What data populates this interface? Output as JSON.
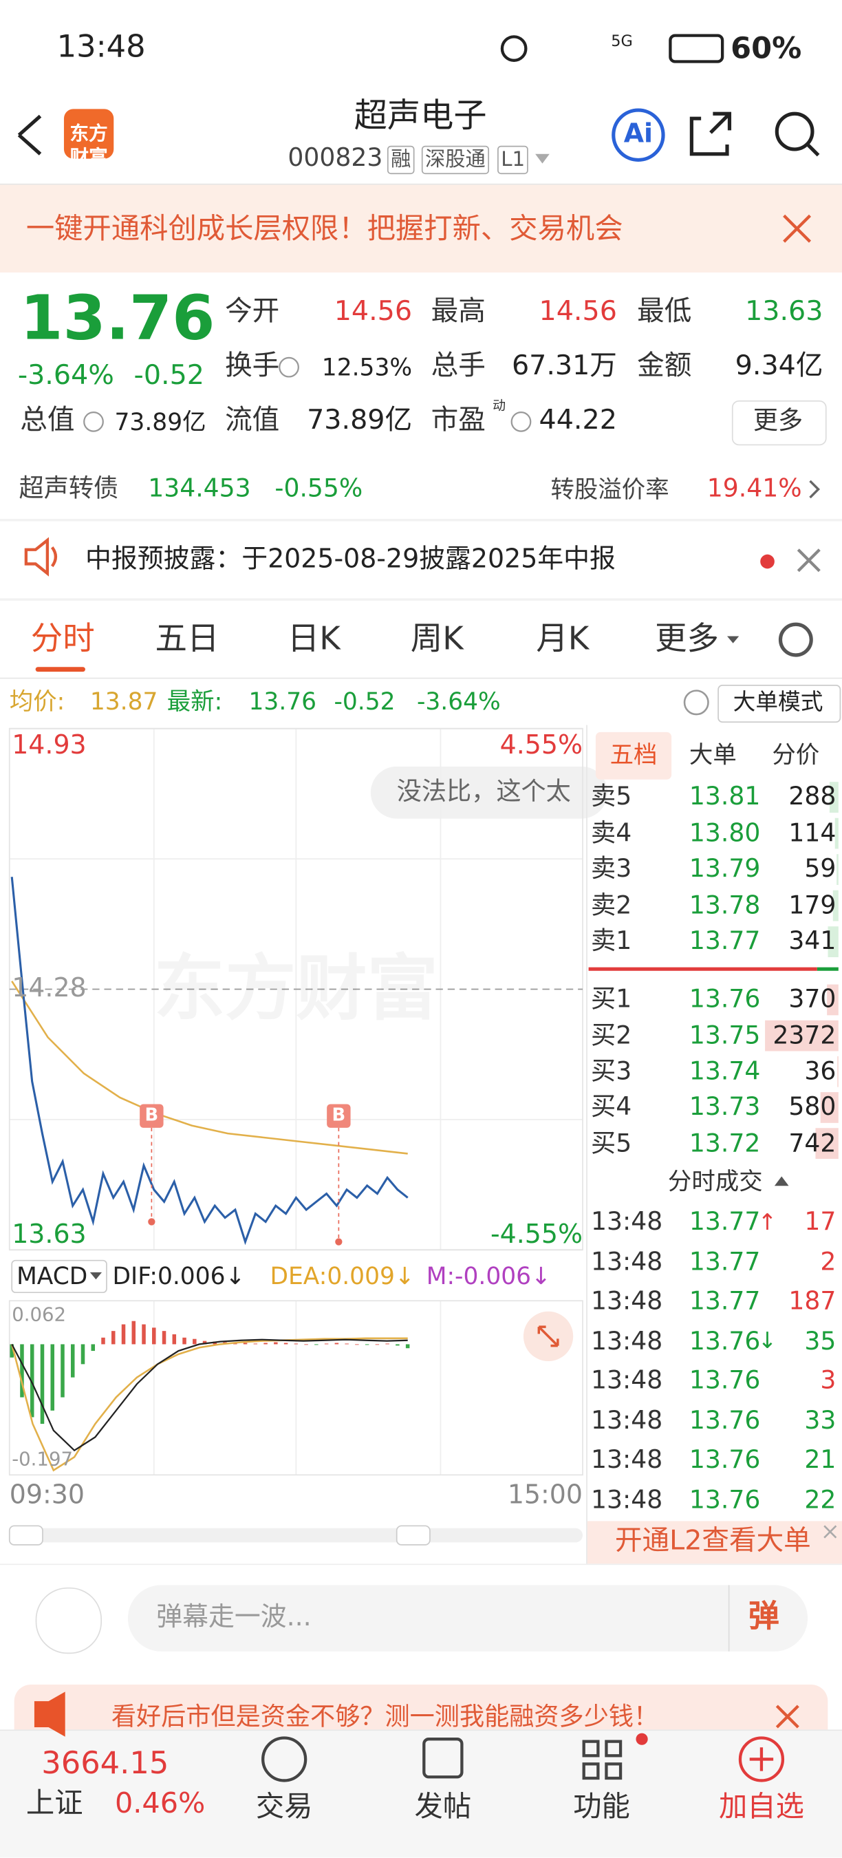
{
  "status_bar": {
    "time": "13:48",
    "network": "5G",
    "battery": "60%"
  },
  "header": {
    "logo": "东方财富",
    "title": "超声电子",
    "code": "000823",
    "tags": [
      "融",
      "深股通",
      "L1"
    ],
    "ai": "Ai"
  },
  "banner": "一键开通科创成长层权限！把握打新、交易机会",
  "quote": {
    "price": "13.76",
    "change_pct": "-3.64%",
    "change": "-0.52",
    "fields": [
      {
        "label": "今开",
        "value": "14.56",
        "color": "#e23b3b"
      },
      {
        "label": "最高",
        "value": "14.56",
        "color": "#e23b3b"
      },
      {
        "label": "最低",
        "value": "13.63",
        "color": "#1a9e3a"
      },
      {
        "label": "换手",
        "value": "12.53%",
        "color": "#222222"
      },
      {
        "label": "总手",
        "value": "67.31万",
        "color": "#222222"
      },
      {
        "label": "金额",
        "value": "9.34亿",
        "color": "#222222"
      },
      {
        "label": "总值",
        "value": "73.89亿",
        "color": "#222222"
      },
      {
        "label": "流值",
        "value": "73.89亿",
        "color": "#222222"
      },
      {
        "label": "市盈",
        "superscript": "动",
        "value": "44.22",
        "color": "#222222"
      }
    ],
    "more": "更多"
  },
  "bond": {
    "name": "超声转债",
    "price": "134.453",
    "change_pct": "-0.55%",
    "premium_label": "转股溢价率",
    "premium": "19.41%"
  },
  "notice": "中报预披露：于2025-08-29披露2025年中报",
  "tabs": [
    "分时",
    "五日",
    "日K",
    "周K",
    "月K",
    "更多"
  ],
  "info_line": {
    "avg_label": "均价:",
    "avg": "13.87",
    "latest_label": "最新:",
    "latest": "13.76",
    "change": "-0.52",
    "change_pct": "-3.64%",
    "mode": "大单模式"
  },
  "intraday": {
    "ylim": [
      13.63,
      14.93
    ],
    "mid": 14.28,
    "pct_labels": [
      "4.55%",
      "-4.55%"
    ],
    "danmaku": "没法比，这个太",
    "watermark": "东方财富",
    "markers": [
      "B",
      "B"
    ],
    "price": [
      14.56,
      14.3,
      14.05,
      13.92,
      13.8,
      13.85,
      13.74,
      13.78,
      13.7,
      13.82,
      13.76,
      13.8,
      13.73,
      13.84,
      13.78,
      13.75,
      13.8,
      13.72,
      13.76,
      13.7,
      13.74,
      13.71,
      13.73,
      13.65,
      13.72,
      13.7,
      13.74,
      13.72,
      13.76,
      13.73,
      13.75,
      13.77,
      13.74,
      13.78,
      13.76,
      13.79,
      13.77,
      13.81,
      13.78,
      13.76
    ],
    "avg": [
      14.3,
      14.16,
      14.07,
      14.01,
      13.97,
      13.94,
      13.92,
      13.91,
      13.9,
      13.89,
      13.88,
      13.87
    ],
    "macd": {
      "label": "MACD",
      "dif_label": "DIF:0.006↓",
      "dea_label": "DEA:0.009↓",
      "m_label": "M:-0.006↓",
      "ylim": [
        -0.197,
        0.062
      ],
      "m": [
        -0.02,
        -0.08,
        -0.11,
        -0.12,
        -0.1,
        -0.08,
        -0.05,
        -0.03,
        -0.01,
        0.01,
        0.02,
        0.03,
        0.035,
        0.03,
        0.025,
        0.02,
        0.015,
        0.01,
        0.008,
        0.005,
        0.004,
        0.003,
        0.002,
        0.002,
        0.001,
        0.002,
        0.003,
        0.002,
        0.001,
        0.0,
        -0.001,
        0.001,
        0.002,
        0.001,
        0.0,
        -0.001,
        0.0,
        0.001,
        -0.002,
        -0.006
      ],
      "dif": [
        0.0,
        -0.06,
        -0.13,
        -0.16,
        -0.14,
        -0.1,
        -0.06,
        -0.03,
        -0.01,
        0.0,
        0.004,
        0.006,
        0.007,
        0.006,
        0.005,
        0.006,
        0.007,
        0.006,
        0.005,
        0.006
      ],
      "dea": [
        0.0,
        -0.12,
        -0.19,
        -0.17,
        -0.12,
        -0.08,
        -0.05,
        -0.03,
        -0.015,
        -0.005,
        0.0,
        0.003,
        0.005,
        0.006,
        0.007,
        0.008,
        0.008,
        0.009,
        0.009,
        0.009
      ]
    },
    "times": [
      "09:30",
      "15:00"
    ]
  },
  "order_book": {
    "tabs": [
      "五档",
      "大单",
      "分价"
    ],
    "asks": [
      {
        "label": "卖5",
        "price": "13.81",
        "volume": 288
      },
      {
        "label": "卖4",
        "price": "13.80",
        "volume": 114
      },
      {
        "label": "卖3",
        "price": "13.79",
        "volume": 59
      },
      {
        "label": "卖2",
        "price": "13.78",
        "volume": 179
      },
      {
        "label": "卖1",
        "price": "13.77",
        "volume": 341
      }
    ],
    "bids": [
      {
        "label": "买1",
        "price": "13.76",
        "volume": 370
      },
      {
        "label": "买2",
        "price": "13.75",
        "volume": 2372
      },
      {
        "label": "买3",
        "price": "13.74",
        "volume": 36
      },
      {
        "label": "买4",
        "price": "13.73",
        "volume": 580
      },
      {
        "label": "买5",
        "price": "13.72",
        "volume": 742
      }
    ]
  },
  "trades": {
    "title": "分时成交",
    "rows": [
      {
        "time": "13:48",
        "price": "13.77",
        "arrow": "↑",
        "volume": "17",
        "color": "#e23b3b"
      },
      {
        "time": "13:48",
        "price": "13.77",
        "volume": "2",
        "color": "#e23b3b"
      },
      {
        "time": "13:48",
        "price": "13.77",
        "volume": "187",
        "color": "#e23b3b"
      },
      {
        "time": "13:48",
        "price": "13.76",
        "arrow": "↓",
        "volume": "35",
        "color": "#1a9e3a"
      },
      {
        "time": "13:48",
        "price": "13.76",
        "volume": "3",
        "color": "#e23b3b"
      },
      {
        "time": "13:48",
        "price": "13.76",
        "volume": "33",
        "color": "#1a9e3a"
      },
      {
        "time": "13:48",
        "price": "13.76",
        "volume": "21",
        "color": "#1a9e3a"
      },
      {
        "time": "13:48",
        "price": "13.76",
        "volume": "22",
        "color": "#1a9e3a"
      }
    ],
    "l2": "开通L2查看大单"
  },
  "comment": {
    "placeholder": "弹幕走一波...",
    "button": "弹"
  },
  "ad": "看好后市但是资金不够？测一测我能融资多少钱！",
  "bottom_bar": {
    "index_name": "上证",
    "index_value": "3664.15",
    "index_pct": "0.46%",
    "nav": [
      "交易",
      "发帖",
      "功能",
      "加自选"
    ]
  }
}
